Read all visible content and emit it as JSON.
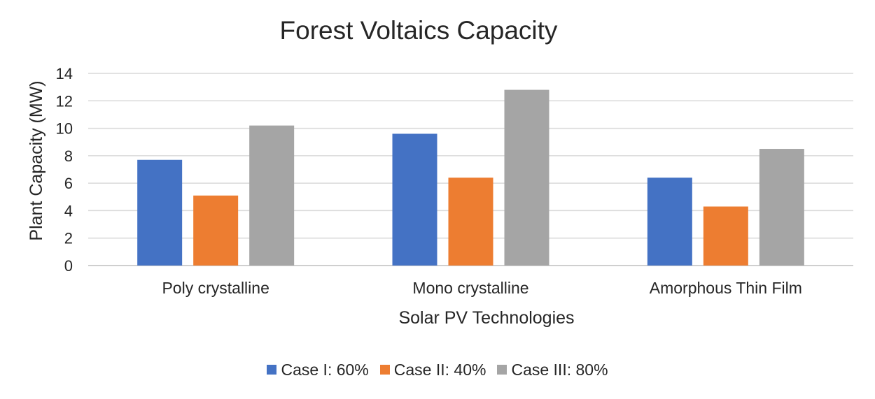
{
  "chart_data": {
    "type": "bar",
    "title": "Forest Voltaics Capacity",
    "xlabel": "Solar PV Technologies",
    "ylabel": "Plant Capacity (MW)",
    "ylim": [
      0,
      14
    ],
    "yticks": [
      0,
      2,
      4,
      6,
      8,
      10,
      12,
      14
    ],
    "grid": true,
    "legend_position": "bottom",
    "categories": [
      "Poly crystalline",
      "Mono crystalline",
      "Amorphous Thin Film"
    ],
    "series": [
      {
        "name": "Case I: 60%",
        "color": "#4472c4",
        "values": [
          7.7,
          9.6,
          6.4
        ]
      },
      {
        "name": "Case II: 40%",
        "color": "#ed7d31",
        "values": [
          5.1,
          6.4,
          4.3
        ]
      },
      {
        "name": "Case III: 80%",
        "color": "#a5a5a5",
        "values": [
          10.2,
          12.8,
          8.5
        ]
      }
    ]
  }
}
